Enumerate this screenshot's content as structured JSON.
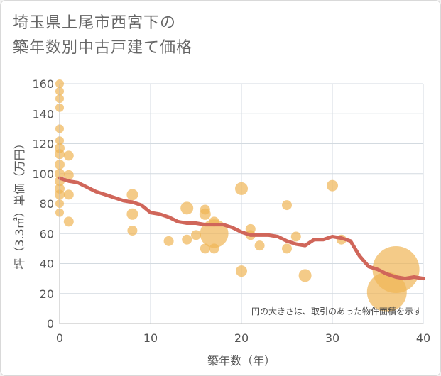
{
  "title_line1": "埼玉県上尾市西宮下の",
  "title_line2": "築年数別中古戸建て価格",
  "colors": {
    "bubble": "#f0b555",
    "trend": "#d0665a",
    "grid": "#d3dae0",
    "axis": "#bbbbbb"
  },
  "chart_data": {
    "type": "scatter",
    "title": "埼玉県上尾市西宮下の築年数別中古戸建て価格",
    "xlabel": "築年数（年）",
    "ylabel": "坪（3.3㎡）単価（万円）",
    "xlim": [
      0,
      40
    ],
    "ylim": [
      0,
      160
    ],
    "x_ticks": [
      0,
      10,
      20,
      30,
      40
    ],
    "y_ticks": [
      0,
      20,
      40,
      60,
      80,
      100,
      120,
      140,
      160
    ],
    "x_tick_labels": [
      "0",
      "10",
      "20",
      "30",
      "40"
    ],
    "y_tick_labels": [
      "0",
      "20",
      "40",
      "60",
      "80",
      "100",
      "120",
      "140",
      "160"
    ],
    "grid": true,
    "note": "円の大きさは、取引のあった物件面積を示す",
    "series": [
      {
        "kind": "bubble",
        "points": [
          {
            "x": 0,
            "y": 160,
            "s": 6
          },
          {
            "x": 0,
            "y": 155,
            "s": 6
          },
          {
            "x": 0,
            "y": 150,
            "s": 6
          },
          {
            "x": 0,
            "y": 144,
            "s": 6
          },
          {
            "x": 0,
            "y": 130,
            "s": 6
          },
          {
            "x": 0,
            "y": 122,
            "s": 6
          },
          {
            "x": 0,
            "y": 117,
            "s": 7
          },
          {
            "x": 0,
            "y": 113,
            "s": 7
          },
          {
            "x": 0,
            "y": 106,
            "s": 7
          },
          {
            "x": 0,
            "y": 100,
            "s": 7
          },
          {
            "x": 0,
            "y": 95,
            "s": 7
          },
          {
            "x": 0,
            "y": 90,
            "s": 7
          },
          {
            "x": 0,
            "y": 86,
            "s": 7
          },
          {
            "x": 0,
            "y": 80,
            "s": 6
          },
          {
            "x": 0,
            "y": 74,
            "s": 6
          },
          {
            "x": 1,
            "y": 112,
            "s": 7
          },
          {
            "x": 1,
            "y": 99,
            "s": 7
          },
          {
            "x": 1,
            "y": 86,
            "s": 7
          },
          {
            "x": 1,
            "y": 68,
            "s": 7
          },
          {
            "x": 8,
            "y": 86,
            "s": 8
          },
          {
            "x": 8,
            "y": 73,
            "s": 8
          },
          {
            "x": 8,
            "y": 62,
            "s": 7
          },
          {
            "x": 12,
            "y": 55,
            "s": 7
          },
          {
            "x": 14,
            "y": 77,
            "s": 9
          },
          {
            "x": 14,
            "y": 56,
            "s": 7
          },
          {
            "x": 15,
            "y": 59,
            "s": 7
          },
          {
            "x": 16,
            "y": 76,
            "s": 7
          },
          {
            "x": 16,
            "y": 73,
            "s": 8
          },
          {
            "x": 16,
            "y": 50,
            "s": 7
          },
          {
            "x": 17,
            "y": 68,
            "s": 7
          },
          {
            "x": 17,
            "y": 60,
            "s": 20
          },
          {
            "x": 17,
            "y": 50,
            "s": 7
          },
          {
            "x": 20,
            "y": 90,
            "s": 9
          },
          {
            "x": 20,
            "y": 35,
            "s": 8
          },
          {
            "x": 21,
            "y": 63,
            "s": 7
          },
          {
            "x": 21,
            "y": 59,
            "s": 7
          },
          {
            "x": 22,
            "y": 52,
            "s": 7
          },
          {
            "x": 25,
            "y": 79,
            "s": 7
          },
          {
            "x": 25,
            "y": 50,
            "s": 7
          },
          {
            "x": 26,
            "y": 58,
            "s": 7
          },
          {
            "x": 27,
            "y": 32,
            "s": 9
          },
          {
            "x": 30,
            "y": 92,
            "s": 8
          },
          {
            "x": 31,
            "y": 56,
            "s": 7
          },
          {
            "x": 36,
            "y": 21,
            "s": 28
          },
          {
            "x": 37,
            "y": 36,
            "s": 33
          }
        ]
      },
      {
        "kind": "trend",
        "x": [
          0,
          1,
          2,
          3,
          4,
          5,
          6,
          7,
          8,
          9,
          10,
          11,
          12,
          13,
          14,
          15,
          16,
          17,
          18,
          19,
          20,
          21,
          22,
          23,
          24,
          25,
          26,
          27,
          28,
          29,
          30,
          31,
          32,
          33,
          34,
          35,
          36,
          37,
          38,
          39,
          40
        ],
        "y": [
          97,
          95,
          94,
          91,
          88,
          86,
          84,
          82,
          81,
          79,
          74,
          73,
          71,
          68,
          67,
          67,
          66,
          66,
          66,
          64,
          61,
          59,
          59,
          59,
          58,
          55,
          53,
          52,
          56,
          56,
          58,
          57,
          55,
          45,
          38,
          36,
          33,
          31,
          30,
          31,
          30
        ]
      }
    ]
  }
}
